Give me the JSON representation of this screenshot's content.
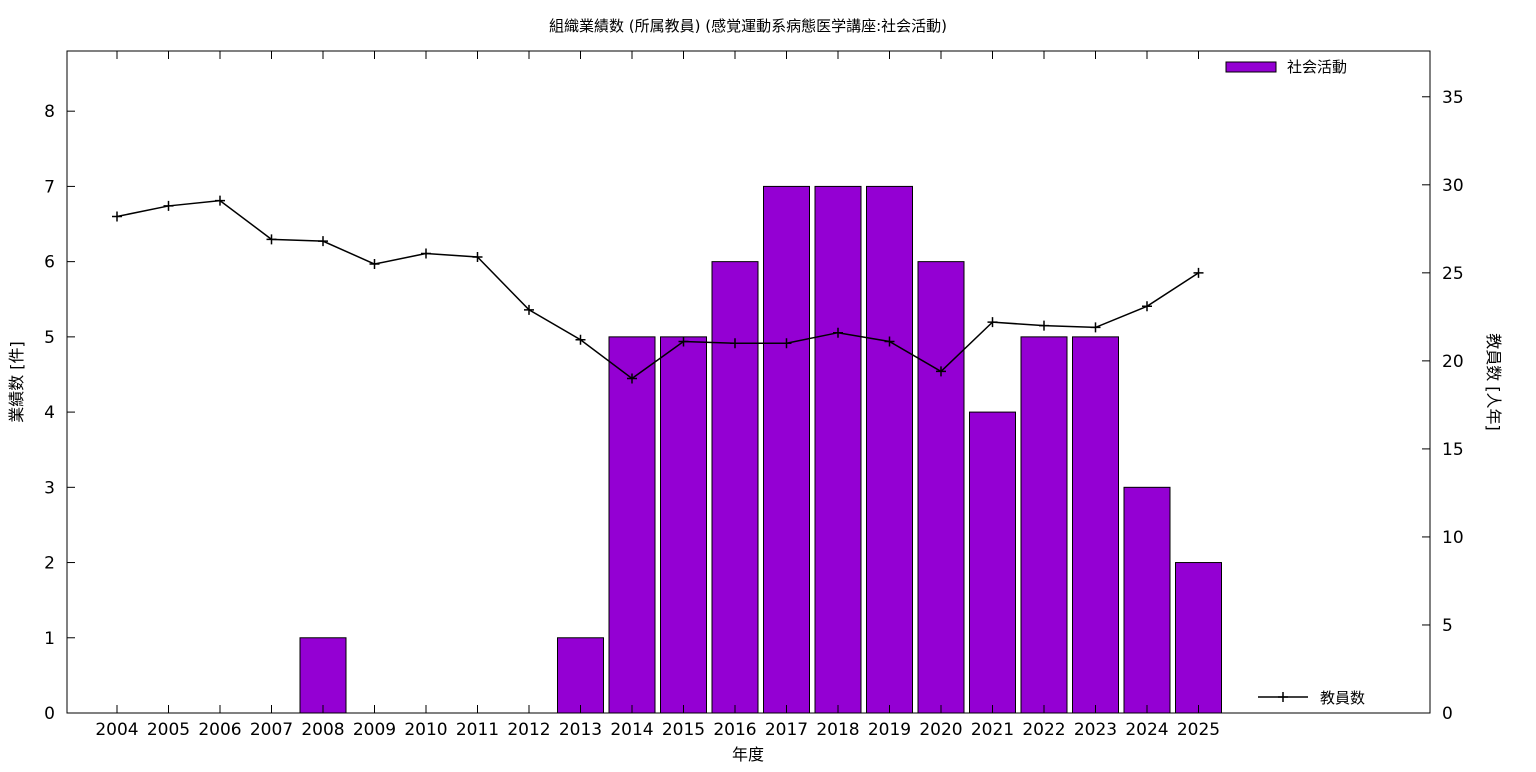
{
  "chart_data": {
    "type": "bar",
    "title": "組織業績数 (所属教員) (感覚運動系病態医学講座:社会活動)",
    "xlabel": "年度",
    "ylabel": "業績数 [件]",
    "y2label": "教員数 [人年]",
    "categories": [
      "2004",
      "2005",
      "2006",
      "2007",
      "2008",
      "2009",
      "2010",
      "2011",
      "2012",
      "2013",
      "2014",
      "2015",
      "2016",
      "2017",
      "2018",
      "2019",
      "2020",
      "2021",
      "2022",
      "2023",
      "2024",
      "2025"
    ],
    "series": [
      {
        "name": "社会活動",
        "type": "bar",
        "axis": "left",
        "color": "#9400d3",
        "values": [
          0,
          0,
          0,
          0,
          1,
          0,
          0,
          0,
          0,
          1,
          5,
          5,
          6,
          7,
          7,
          7,
          6,
          4,
          5,
          5,
          3,
          2
        ]
      },
      {
        "name": "教員数",
        "type": "line",
        "axis": "right",
        "color": "#000000",
        "values": [
          28.2,
          28.8,
          29.1,
          26.9,
          26.8,
          25.5,
          26.1,
          25.9,
          22.9,
          21.2,
          19.0,
          21.1,
          21.0,
          21.0,
          21.6,
          21.1,
          19.4,
          22.2,
          22.0,
          21.9,
          23.1,
          25.0
        ]
      }
    ],
    "ylim": [
      0,
      8.8
    ],
    "yticks": [
      0,
      1,
      2,
      3,
      4,
      5,
      6,
      7,
      8
    ],
    "y2lim": [
      0,
      37.6
    ],
    "y2ticks": [
      0,
      5,
      10,
      15,
      20,
      25,
      30,
      35
    ],
    "grid": false,
    "legend": [
      {
        "label": "社会活動",
        "placement": "top-right",
        "symbol": "bar"
      },
      {
        "label": "教員数",
        "placement": "bottom-right",
        "symbol": "line"
      }
    ]
  }
}
